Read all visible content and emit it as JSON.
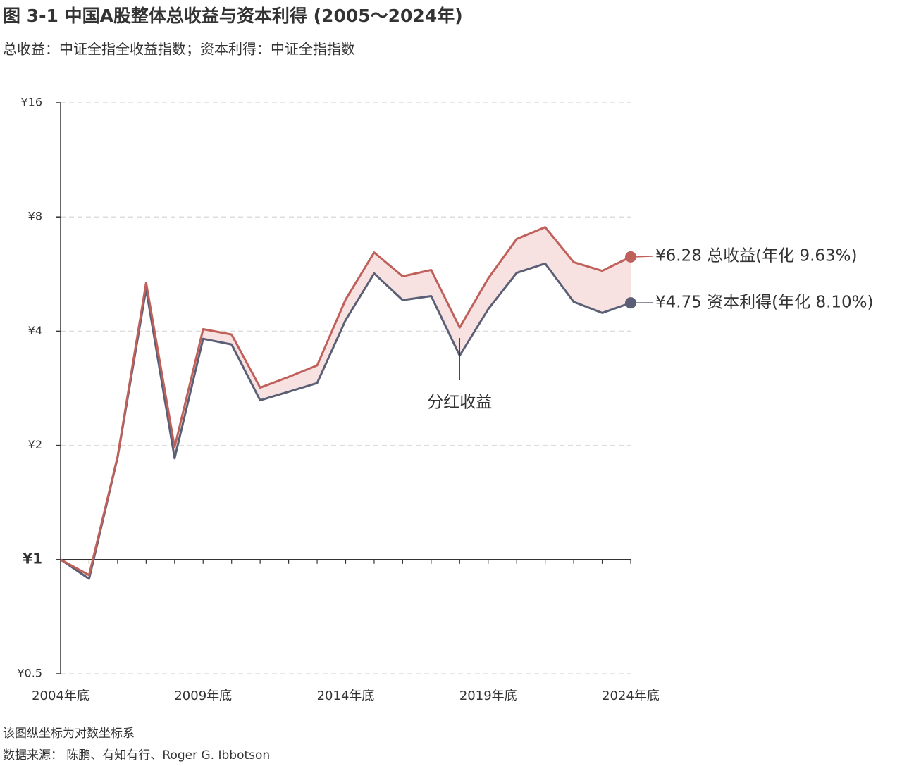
{
  "chart_data": {
    "type": "line",
    "title": "图 3-1   中国A股整体总收益与资本利得 (2005～2024年)",
    "subtitle": "总收益：中证全指全收益指数；资本利得：中证全指指数",
    "categories": [
      "2004年底",
      null,
      null,
      null,
      null,
      "2009年底",
      null,
      null,
      null,
      null,
      "2014年底",
      null,
      null,
      null,
      null,
      "2019年底",
      null,
      null,
      null,
      null,
      "2024年底"
    ],
    "series": [
      {
        "name": "¥6.28 总收益(年化 9.63%)",
        "color": "#c0605a",
        "values": [
          1,
          0.91,
          1.87,
          5.37,
          1.98,
          4.05,
          3.92,
          2.84,
          3.03,
          3.25,
          4.85,
          6.45,
          5.58,
          5.8,
          4.09,
          5.51,
          7.0,
          7.52,
          6.08,
          5.77,
          6.28
        ]
      },
      {
        "name": "¥4.75 资本利得(年化 8.10%)",
        "color": "#5a5f75",
        "values": [
          1,
          0.89,
          1.86,
          5.17,
          1.85,
          3.82,
          3.69,
          2.63,
          2.77,
          2.92,
          4.28,
          5.68,
          4.83,
          4.95,
          3.45,
          4.57,
          5.7,
          6.03,
          4.78,
          4.47,
          4.75
        ]
      }
    ],
    "band_color": "#f7e1e1",
    "log_scale": true,
    "ylim": [
      0.5,
      16
    ],
    "yticks": [
      {
        "value": 0.5,
        "label": "¥0.5"
      },
      {
        "value": 1,
        "label": "¥1"
      },
      {
        "value": 2,
        "label": "¥2"
      },
      {
        "value": 4,
        "label": "¥4"
      },
      {
        "value": 8,
        "label": "¥8"
      },
      {
        "value": 16,
        "label": "¥16"
      }
    ],
    "grid": true,
    "annotation": "分红收益",
    "notes": [
      "该图纵坐标为对数坐标系",
      "数据来源：  陈鹏、有知有行、Roger G. Ibbotson"
    ]
  }
}
